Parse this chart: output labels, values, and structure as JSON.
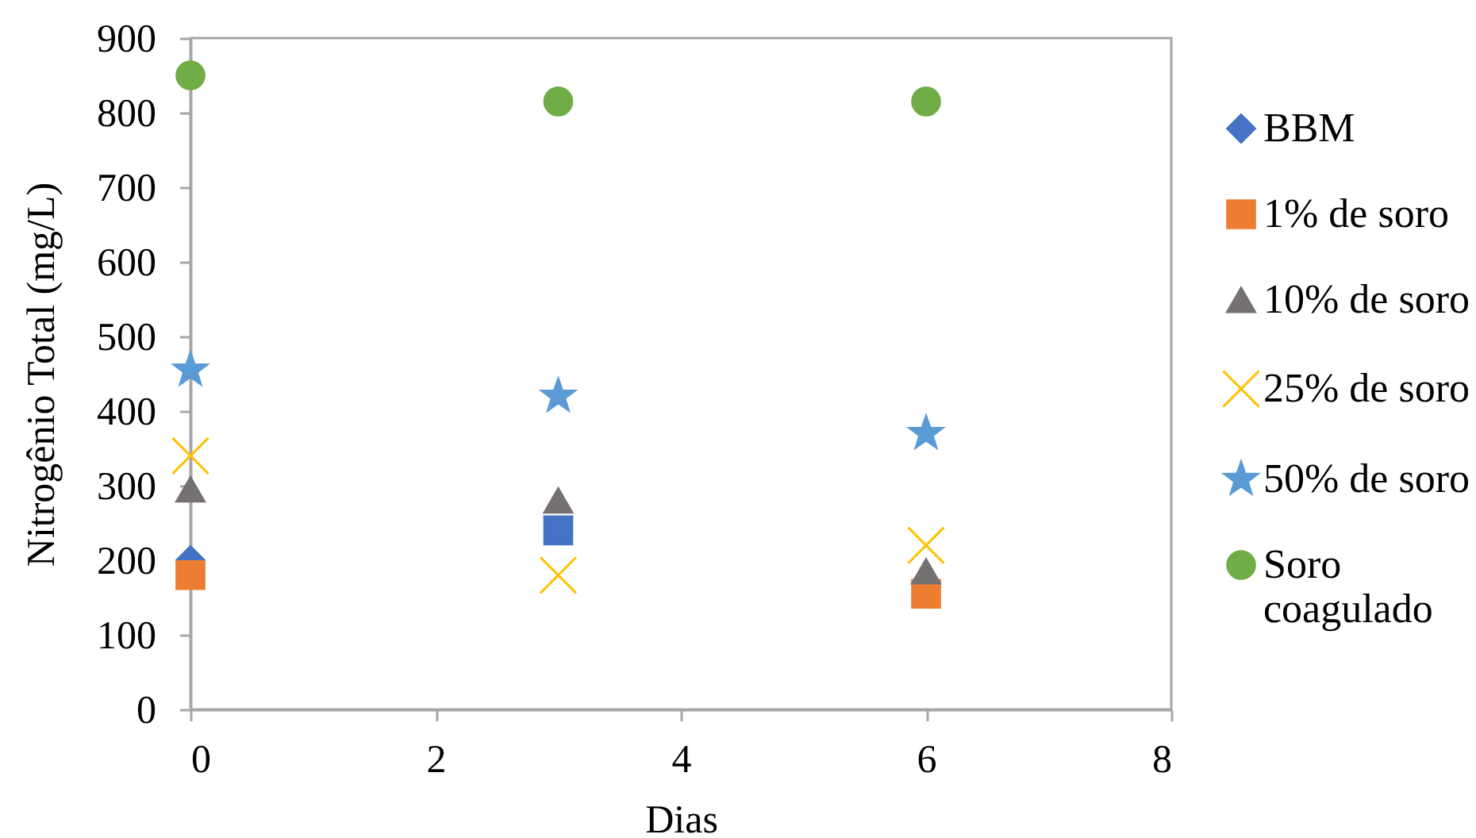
{
  "chart_data": {
    "type": "scatter",
    "xlabel": "Dias",
    "ylabel": "Nitrogênio Total (mg/L)",
    "x": [
      0,
      3,
      6
    ],
    "xlim": [
      0,
      8
    ],
    "xticks": [
      0,
      2,
      4,
      6,
      8
    ],
    "ylim": [
      0,
      900
    ],
    "yticks": [
      0,
      100,
      200,
      300,
      400,
      500,
      600,
      700,
      800,
      900
    ],
    "grid": false,
    "legend": "right",
    "series": [
      {
        "name": "BBM",
        "color": "#4472c4",
        "marker": "diamond",
        "values": [
          200,
          null,
          null
        ]
      },
      {
        "name": "1% de soro",
        "color": "#ed7d31",
        "colors": [
          "#ed7d31",
          "#4472c4",
          "#ed7d31"
        ],
        "marker": "square",
        "values": [
          180,
          240,
          155
        ]
      },
      {
        "name": "10% de soro",
        "color": "#767171",
        "marker": "triangle",
        "values": [
          295,
          280,
          185
        ]
      },
      {
        "name": "25% de soro",
        "color": "#ffc000",
        "marker": "cross",
        "values": [
          340,
          180,
          220
        ]
      },
      {
        "name": "50% de soro",
        "color": "#5b9bd5",
        "marker": "star",
        "values": [
          455,
          420,
          370
        ]
      },
      {
        "name": "Soro coagulado",
        "color": "#70ad47",
        "marker": "circle",
        "values": [
          850,
          815,
          815
        ]
      }
    ]
  }
}
